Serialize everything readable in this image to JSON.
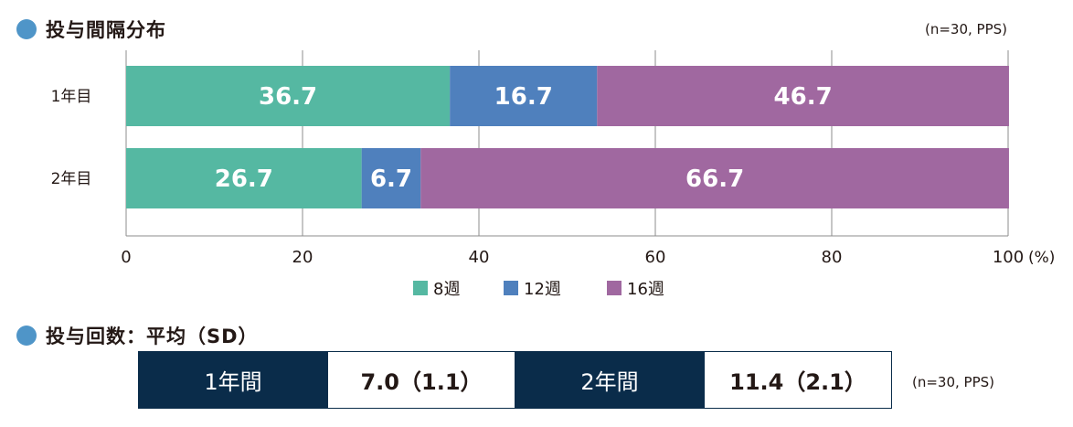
{
  "section1": {
    "title": "投与間隔分布",
    "note": "(n=30, PPS)"
  },
  "section2": {
    "title": "投与回数：平均（SD）",
    "note": "(n=30, PPS)",
    "cells": [
      {
        "label": "1年間",
        "value": "7.0（1.1）"
      },
      {
        "label": "2年間",
        "value": "11.4（2.1）"
      }
    ]
  },
  "chart_data": {
    "type": "bar",
    "orientation": "horizontal",
    "stacked": true,
    "categories": [
      "1年目",
      "2年目"
    ],
    "series": [
      {
        "name": "8週",
        "color": "#55b8a2",
        "values": [
          36.7,
          26.7
        ]
      },
      {
        "name": "12週",
        "color": "#4f80bd",
        "values": [
          16.7,
          6.7
        ]
      },
      {
        "name": "16週",
        "color": "#a068a0",
        "values": [
          46.7,
          66.7
        ]
      }
    ],
    "xlim": [
      0,
      100
    ],
    "xticks": [
      "0",
      "20",
      "40",
      "60",
      "80",
      "100"
    ],
    "xunit": "(%)",
    "grid": true,
    "legend": "bottom"
  }
}
